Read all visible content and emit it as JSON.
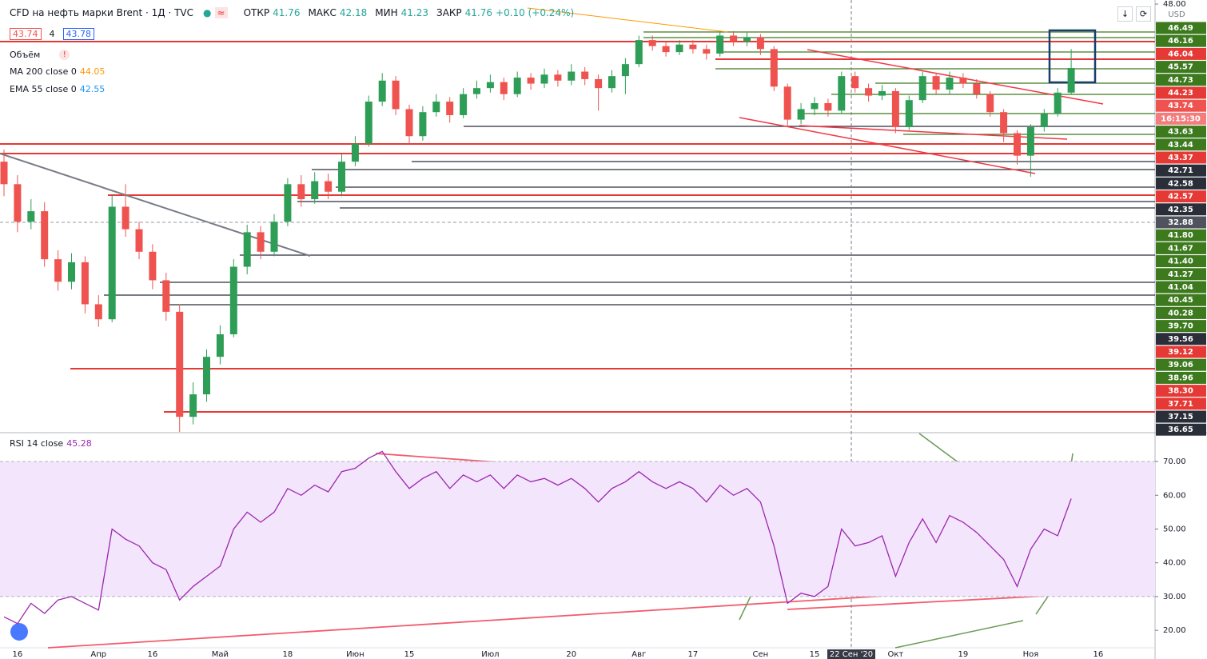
{
  "chart_data": [
    {
      "type": "candlestick",
      "title": "CFD на нефть марки Brent · 1Д · TVC",
      "ohlc_labels": [
        "ОТКР",
        "МАКС",
        "МИН",
        "ЗАКР"
      ],
      "ohlc_values": [
        41.76,
        42.18,
        41.23,
        41.76
      ],
      "change": "+0.10 (+0.24%)",
      "bid": 43.74,
      "spread": 4,
      "ask": 43.78,
      "indicators": [
        {
          "name": "Объём"
        },
        {
          "name": "MA 200 close 0",
          "value": 44.05,
          "color": "#ff9800"
        },
        {
          "name": "EMA 55 close 0",
          "value": 42.55,
          "color": "#2196f3"
        }
      ],
      "currency": "USD",
      "crosshair_label": "22 Сен '20",
      "up_color": "#2e9e57",
      "down_color": "#ef5350",
      "ylim": [
        19.5,
        48.27
      ],
      "yticks": [
        {
          "value": 48,
          "label": "48.00"
        }
      ],
      "categories": [
        null,
        "16",
        null,
        null,
        null,
        null,
        null,
        "Апр",
        null,
        null,
        null,
        "16",
        null,
        null,
        null,
        null,
        "Май",
        null,
        null,
        null,
        null,
        "18",
        null,
        null,
        null,
        null,
        "Июн",
        null,
        null,
        null,
        "15",
        null,
        null,
        null,
        null,
        null,
        "Июл",
        null,
        null,
        null,
        null,
        null,
        "20",
        null,
        null,
        null,
        null,
        "Авг",
        null,
        null,
        null,
        "17",
        null,
        null,
        null,
        null,
        "Сен",
        null,
        null,
        null,
        "15",
        null,
        null,
        null,
        null,
        null,
        "Окт",
        null,
        null,
        null,
        null,
        "19",
        null,
        null,
        null,
        null,
        "Ноя",
        null,
        null,
        null,
        null,
        "16"
      ],
      "open": [
        37.5,
        36.0,
        33.5,
        34.2,
        31.0,
        29.5,
        30.8,
        28.0,
        27.0,
        34.5,
        33.0,
        31.5,
        29.6,
        27.5,
        20.5,
        22.0,
        24.5,
        26.0,
        30.5,
        32.8,
        31.5,
        33.5,
        36.0,
        35.0,
        36.2,
        35.5,
        37.5,
        38.7,
        41.5,
        42.9,
        41.0,
        39.2,
        40.8,
        41.5,
        40.6,
        42.0,
        42.4,
        42.8,
        42.0,
        43.1,
        42.7,
        43.3,
        42.9,
        43.5,
        43.0,
        42.4,
        43.2,
        44.0,
        45.6,
        45.2,
        44.8,
        45.3,
        45.0,
        44.7,
        45.9,
        45.5,
        45.8,
        45.0,
        42.5,
        40.3,
        41.0,
        41.4,
        40.9,
        43.2,
        42.4,
        41.9,
        42.2,
        39.8,
        41.6,
        43.2,
        42.3,
        43.1,
        42.7,
        42.0,
        40.8,
        39.4,
        37.9,
        39.8,
        40.7,
        42.1,
        null,
        null
      ],
      "high": [
        38.3,
        36.6,
        35.0,
        34.8,
        31.6,
        31.4,
        31.2,
        28.6,
        35.3,
        36.0,
        33.5,
        32.0,
        30.1,
        28.0,
        22.8,
        25.0,
        26.6,
        31.0,
        33.3,
        33.2,
        34.0,
        36.4,
        36.6,
        36.8,
        36.7,
        38.0,
        39.2,
        41.9,
        43.4,
        43.2,
        41.3,
        41.2,
        42.0,
        41.8,
        42.4,
        42.9,
        43.3,
        43.1,
        43.5,
        43.4,
        43.7,
        43.6,
        44.0,
        43.8,
        43.3,
        43.6,
        44.4,
        45.9,
        45.9,
        45.5,
        45.6,
        45.6,
        45.3,
        46.2,
        46.2,
        46.1,
        46.0,
        45.2,
        42.7,
        41.4,
        41.8,
        41.7,
        43.5,
        43.5,
        42.7,
        42.6,
        42.4,
        41.9,
        43.5,
        43.4,
        43.5,
        43.4,
        43.0,
        42.2,
        41.0,
        39.6,
        40.0,
        41.0,
        42.4,
        45.0,
        null,
        null
      ],
      "low": [
        35.2,
        32.8,
        33.0,
        30.5,
        28.9,
        29.0,
        27.4,
        26.5,
        26.8,
        32.5,
        31.0,
        29.0,
        26.9,
        19.5,
        20.0,
        21.5,
        24.0,
        25.8,
        30.0,
        31.0,
        31.2,
        33.2,
        34.5,
        34.7,
        35.0,
        35.2,
        37.2,
        38.5,
        41.2,
        40.6,
        38.7,
        38.9,
        40.5,
        40.1,
        40.4,
        41.7,
        42.1,
        41.6,
        41.8,
        42.3,
        42.4,
        42.5,
        42.6,
        42.6,
        40.9,
        42.1,
        42.0,
        43.8,
        44.9,
        44.5,
        44.6,
        44.7,
        44.3,
        44.5,
        45.2,
        45.2,
        44.6,
        42.2,
        39.9,
        40.0,
        40.6,
        40.5,
        40.7,
        42.1,
        41.5,
        41.6,
        39.4,
        39.6,
        41.4,
        42.0,
        42.0,
        42.4,
        41.7,
        40.5,
        38.8,
        37.3,
        36.5,
        39.5,
        40.5,
        42.0,
        null,
        null
      ],
      "close": [
        36.0,
        33.5,
        34.2,
        31.0,
        29.5,
        30.8,
        28.0,
        27.0,
        34.5,
        33.0,
        31.5,
        29.6,
        27.5,
        20.5,
        22.0,
        24.5,
        26.0,
        30.5,
        32.8,
        31.5,
        33.5,
        36.0,
        35.0,
        36.2,
        35.5,
        37.5,
        38.7,
        41.5,
        42.9,
        41.0,
        39.2,
        40.8,
        41.5,
        40.6,
        42.0,
        42.4,
        42.8,
        42.0,
        43.1,
        42.7,
        43.3,
        42.9,
        43.5,
        43.0,
        42.4,
        43.2,
        44.0,
        45.6,
        45.2,
        44.8,
        45.3,
        45.0,
        44.7,
        45.9,
        45.5,
        45.8,
        45.0,
        42.5,
        40.3,
        41.0,
        41.4,
        40.9,
        43.2,
        42.4,
        41.9,
        42.2,
        39.8,
        41.6,
        43.2,
        42.3,
        43.1,
        42.7,
        42.0,
        40.8,
        39.4,
        37.9,
        39.8,
        40.7,
        42.1,
        43.74,
        null,
        null
      ],
      "levels": [
        {
          "label": "46.49",
          "color": "#3d7a1e"
        },
        {
          "label": "46.16",
          "color": "#3d7a1e"
        },
        {
          "label": "46.04",
          "color": "#e53935"
        },
        {
          "label": "45.57",
          "color": "#3d7a1e"
        },
        {
          "label": "44.73",
          "color": "#3d7a1e"
        },
        {
          "label": "44.23",
          "color": "#e53935"
        },
        {
          "label": "43.74",
          "color": "#ef5350"
        },
        {
          "label": "16:15:30",
          "color": "#f47c7c"
        },
        {
          "label": "43.63",
          "color": "#3d7a1e"
        },
        {
          "label": "43.44",
          "color": "#3d7a1e"
        },
        {
          "label": "43.37",
          "color": "#e53935"
        },
        {
          "label": "42.71",
          "color": "#2a2e39"
        },
        {
          "label": "42.58",
          "color": "#2a2e39"
        },
        {
          "label": "42.57",
          "color": "#e53935"
        },
        {
          "label": "42.35",
          "color": "#2a2e39"
        },
        {
          "label": "32.88",
          "color": "#50535e"
        },
        {
          "label": "41.80",
          "color": "#3d7a1e"
        },
        {
          "label": "41.67",
          "color": "#3d7a1e"
        },
        {
          "label": "41.40",
          "color": "#3d7a1e"
        },
        {
          "label": "41.27",
          "color": "#3d7a1e"
        },
        {
          "label": "41.04",
          "color": "#3d7a1e"
        },
        {
          "label": "40.45",
          "color": "#3d7a1e"
        },
        {
          "label": "40.28",
          "color": "#3d7a1e"
        },
        {
          "label": "39.70",
          "color": "#3d7a1e"
        },
        {
          "label": "39.56",
          "color": "#2a2e39"
        },
        {
          "label": "39.12",
          "color": "#e53935"
        },
        {
          "label": "39.06",
          "color": "#3d7a1e"
        },
        {
          "label": "38.96",
          "color": "#3d7a1e"
        },
        {
          "label": "38.30",
          "color": "#e53935"
        },
        {
          "label": "37.71",
          "color": "#e53935"
        },
        {
          "label": "37.15",
          "color": "#2a2e39"
        },
        {
          "label": "36.65",
          "color": "#2a2e39"
        }
      ]
    },
    {
      "type": "line",
      "current_value": 45.28,
      "ylim": [
        15.3,
        78.3
      ],
      "yticks": [
        {
          "value": 70,
          "label": "70.00"
        },
        {
          "value": 60,
          "label": "60.00"
        },
        {
          "value": 50,
          "label": "50.00"
        },
        {
          "value": 40,
          "label": "40.00"
        },
        {
          "value": 30,
          "label": "30.00"
        },
        {
          "value": 20,
          "label": "20.00"
        }
      ],
      "band": [
        30,
        70
      ],
      "band_color": "#f3e5fb",
      "series": [
        {
          "name": "RSI 14 close",
          "color": "#9c27b0",
          "values": [
            24,
            22,
            28,
            25,
            29,
            30,
            28,
            26,
            50,
            47,
            45,
            40,
            38,
            29,
            33,
            36,
            39,
            50,
            55,
            52,
            55,
            62,
            60,
            63,
            61,
            67,
            68,
            71,
            73,
            67,
            62,
            65,
            67,
            62,
            66,
            64,
            66,
            62,
            66,
            64,
            65,
            63,
            65,
            62,
            58,
            62,
            64,
            67,
            64,
            62,
            64,
            62,
            58,
            63,
            60,
            62,
            58,
            45,
            28,
            31,
            30,
            33,
            50,
            45,
            46,
            48,
            36,
            46,
            53,
            46,
            54,
            52,
            49,
            45,
            41,
            33,
            44,
            50,
            48,
            59,
            null,
            null
          ]
        }
      ]
    }
  ]
}
